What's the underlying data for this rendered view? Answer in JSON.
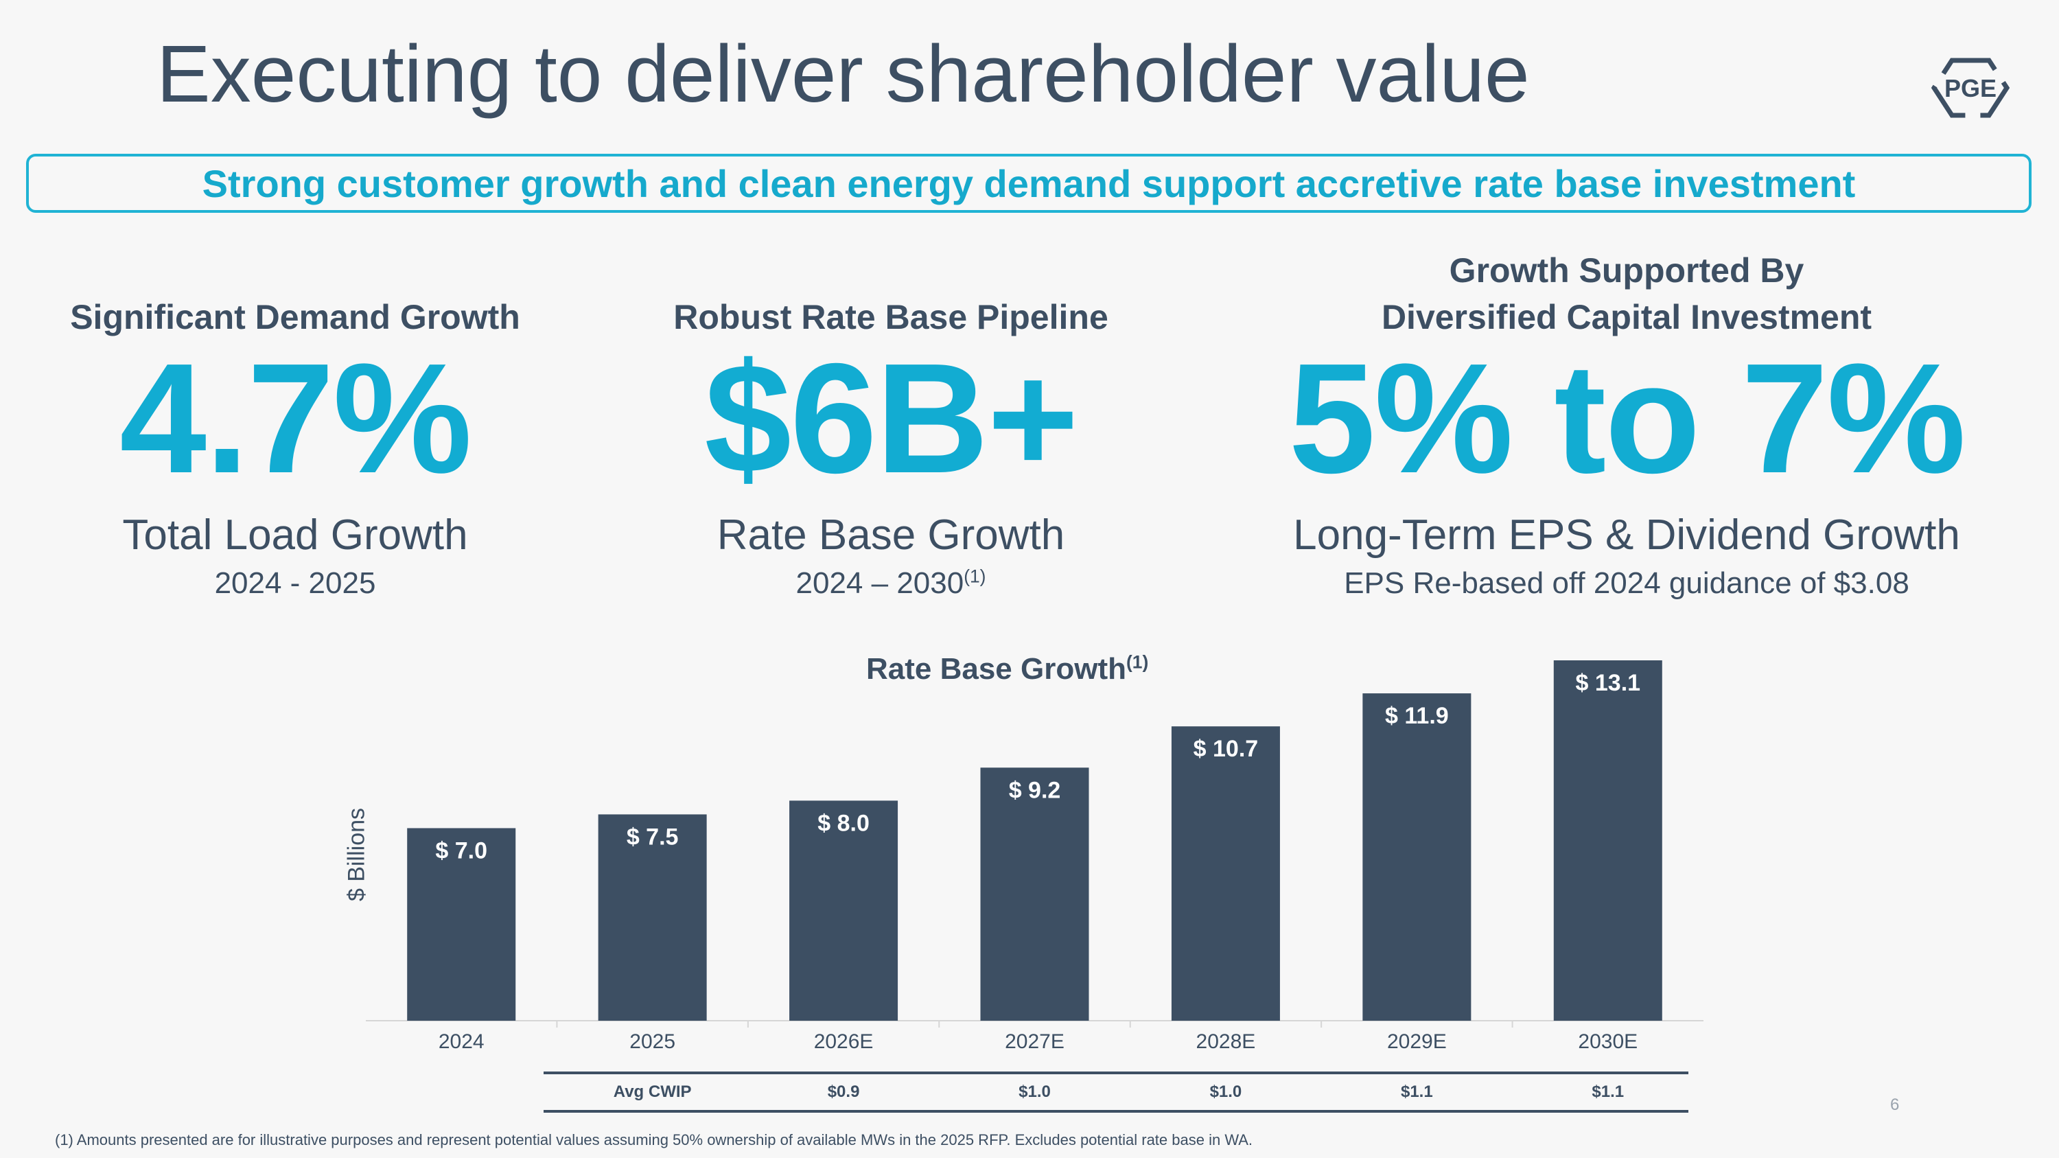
{
  "title": "Executing to deliver shareholder value",
  "logo_text": "PGE",
  "banner": "Strong customer growth and clean energy demand support accretive rate base investment",
  "metrics": [
    {
      "heading_line1": "",
      "heading_line2": "Significant Demand Growth",
      "value": "4.7%",
      "label": "Total Load Growth",
      "sub": "2024 - 2025",
      "sub_note": ""
    },
    {
      "heading_line1": "",
      "heading_line2": "Robust Rate Base Pipeline",
      "value": "$6B+",
      "label": "Rate Base Growth",
      "sub": "2024 – 2030",
      "sub_note": "(1)"
    },
    {
      "heading_line1": "Growth Supported By",
      "heading_line2": "Diversified Capital Investment",
      "value": "5% to 7%",
      "label": "Long-Term EPS & Dividend Growth",
      "sub": "EPS Re-based off 2024 guidance of $3.08",
      "sub_note": ""
    }
  ],
  "chart_data": {
    "type": "bar",
    "title": "Rate Base Growth",
    "title_note": "(1)",
    "ylabel": "$ Billions",
    "xlabel": "",
    "categories": [
      "2024",
      "2025",
      "2026E",
      "2027E",
      "2028E",
      "2029E",
      "2030E"
    ],
    "values": [
      7.0,
      7.5,
      8.0,
      9.2,
      10.7,
      11.9,
      13.1
    ],
    "data_labels": [
      "$ 7.0",
      "$ 7.5",
      "$ 8.0",
      "$ 9.2",
      "$ 10.7",
      "$ 11.9",
      "$ 13.1"
    ],
    "ylim": [
      0,
      13.1
    ],
    "grid": false,
    "bar_color": "#3d4f63",
    "label_color": "#ffffff"
  },
  "cwip": {
    "label": "Avg CWIP",
    "values": [
      "$0.9",
      "$1.0",
      "$1.0",
      "$1.1",
      "$1.1"
    ]
  },
  "page_number": "6",
  "footnote": "(1) Amounts presented are for illustrative purposes and represent potential values assuming 50% ownership of available MWs in the 2025 RFP. Excludes potential rate base in WA.",
  "colors": {
    "accent": "#16a9cc",
    "text": "#3d4f63",
    "background": "#f7f7f7"
  }
}
